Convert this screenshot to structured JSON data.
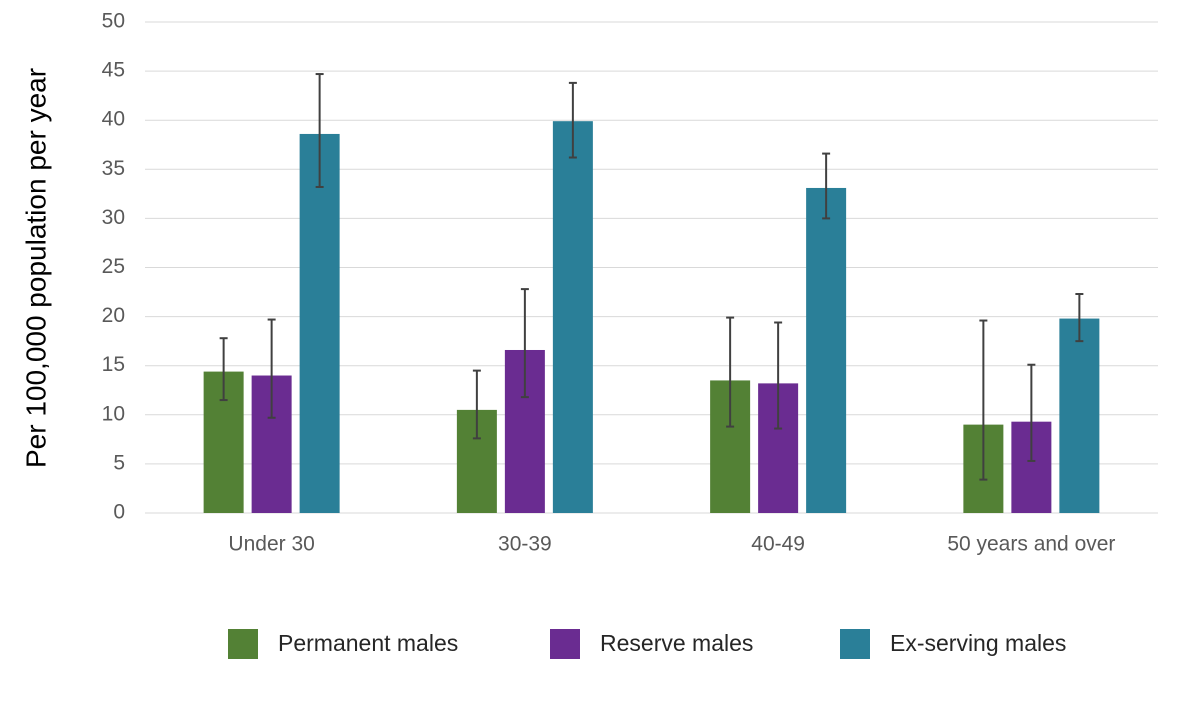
{
  "chart_data": {
    "type": "bar",
    "y_label": "Per 100,000 population per year",
    "categories": [
      "Under 30",
      "30-39",
      "40-49",
      "50 years and over"
    ],
    "series": [
      {
        "name": "Permanent males",
        "color": "#538135",
        "values": [
          14.4,
          10.5,
          13.5,
          9.0
        ],
        "lower": [
          11.5,
          7.6,
          8.8,
          3.4
        ],
        "upper": [
          17.8,
          14.5,
          19.9,
          19.6
        ]
      },
      {
        "name": "Reserve males",
        "color": "#6a2c91",
        "values": [
          14.0,
          16.6,
          13.2,
          9.3
        ],
        "lower": [
          9.7,
          11.8,
          8.6,
          5.3
        ],
        "upper": [
          19.7,
          22.8,
          19.4,
          15.1
        ]
      },
      {
        "name": "Ex-serving males",
        "color": "#2a7f98",
        "values": [
          38.6,
          39.9,
          33.1,
          19.8
        ],
        "lower": [
          33.2,
          36.2,
          30.0,
          17.5
        ],
        "upper": [
          44.7,
          43.8,
          36.6,
          22.3
        ]
      }
    ],
    "ylim": [
      0,
      50
    ],
    "yticks": [
      0,
      5,
      10,
      15,
      20,
      25,
      30,
      35,
      40,
      45,
      50
    ],
    "grid": true,
    "legend": "bottom"
  }
}
